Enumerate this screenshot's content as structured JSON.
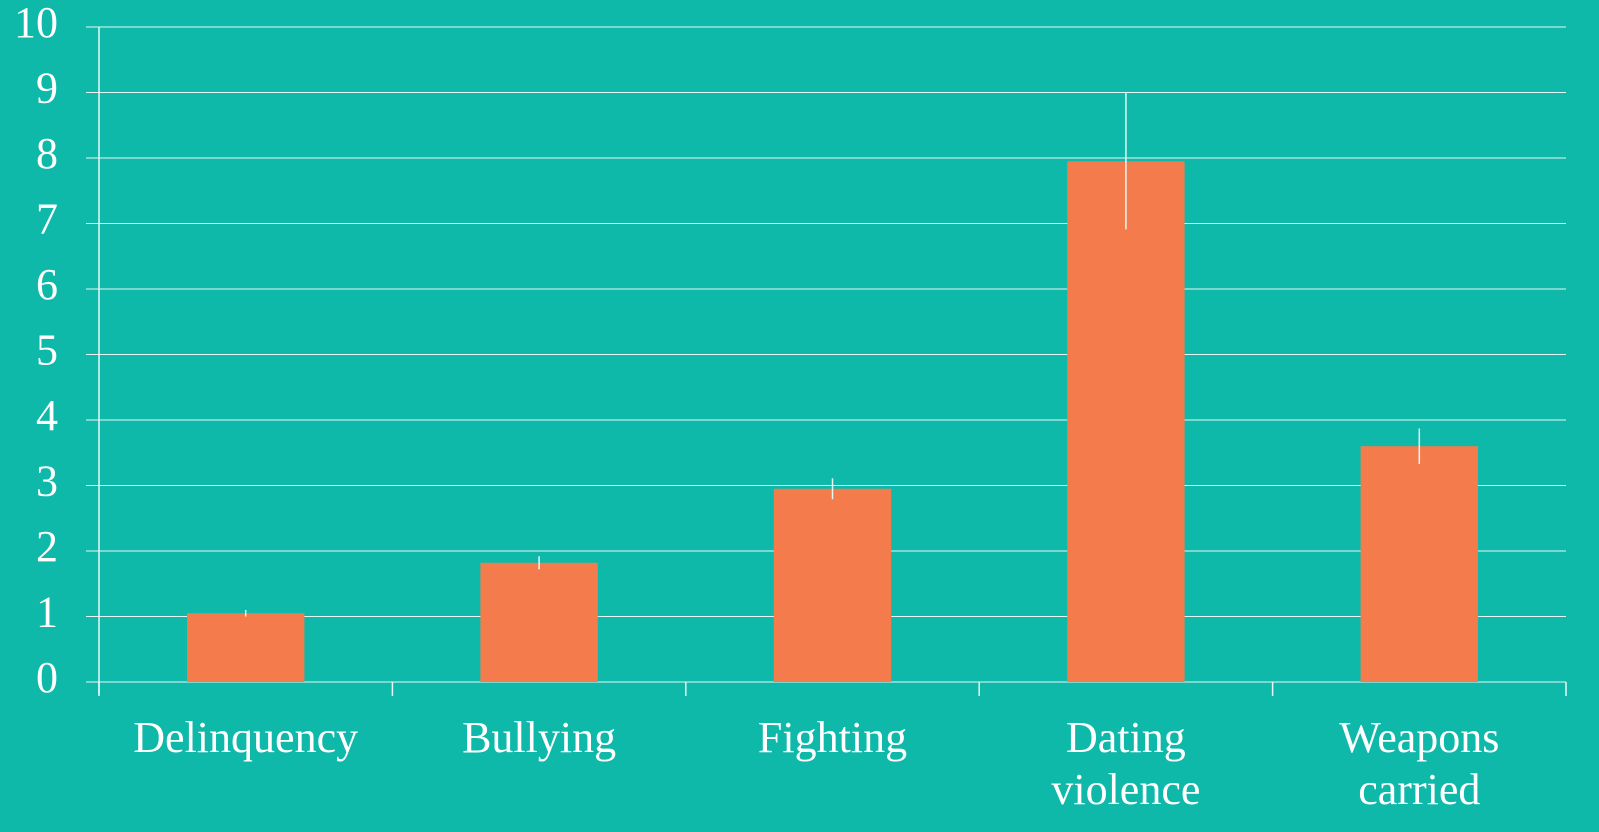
{
  "chart_data": {
    "type": "bar",
    "categories": [
      "Delinquency",
      "Bullying",
      "Fighting",
      "Dating violence",
      "Weapons carried"
    ],
    "values": [
      1.05,
      1.82,
      2.95,
      7.95,
      3.6
    ],
    "errors": [
      0.05,
      0.1,
      0.16,
      1.04,
      0.27
    ],
    "color": "#f47c4c",
    "ylim": [
      0,
      10
    ],
    "yticks": [
      0,
      1,
      2,
      3,
      4,
      5,
      6,
      7,
      8,
      9,
      10
    ],
    "grid": true
  }
}
